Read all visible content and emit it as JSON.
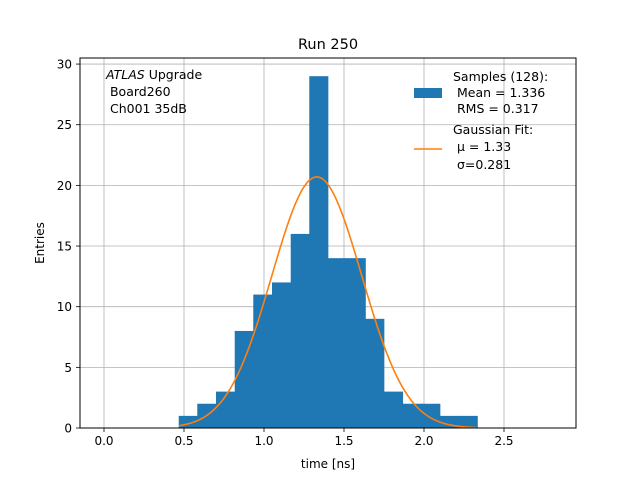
{
  "chart_data": {
    "type": "bar",
    "title": "Run 250",
    "xlabel": "time [ns]",
    "ylabel": "Entries",
    "xlim": [
      -0.15,
      2.95
    ],
    "ylim": [
      0,
      30.5
    ],
    "xticks": [
      0.0,
      0.5,
      1.0,
      1.5,
      2.0,
      2.5
    ],
    "xtick_labels": [
      "0.0",
      "0.5",
      "1.0",
      "1.5",
      "2.0",
      "2.5"
    ],
    "yticks": [
      0,
      5,
      10,
      15,
      20,
      25,
      30
    ],
    "ytick_labels": [
      "0",
      "5",
      "10",
      "15",
      "20",
      "25",
      "30"
    ],
    "grid": true,
    "annotation": {
      "line1_italic": "ATLAS",
      "line1_rest": " Upgrade",
      "line2": " Board260",
      "line3": " Ch001 35dB"
    },
    "legend": {
      "placement": "top-right",
      "entries": [
        {
          "lines": [
            "Samples (128):",
            " Mean = 1.336",
            " RMS = 0.317"
          ],
          "color": "#1f77b4",
          "kind": "patch"
        },
        {
          "lines": [
            "Gaussian Fit:",
            " μ = 1.33",
            " σ=0.281"
          ],
          "color": "#ff7f0e",
          "kind": "line"
        }
      ]
    },
    "histogram": {
      "color": "#1f77b4",
      "bin_width": 0.1167,
      "bin_left_edges": [
        0.467,
        0.583,
        0.7,
        0.817,
        0.933,
        1.05,
        1.167,
        1.283,
        1.4,
        1.517,
        1.633,
        1.75,
        1.867,
        1.983,
        2.1,
        2.217
      ],
      "values": [
        1,
        2,
        3,
        8,
        11,
        12,
        16,
        29,
        14,
        14,
        9,
        3,
        2,
        2,
        1,
        1
      ]
    },
    "fit": {
      "color": "#ff7f0e",
      "mu": 1.33,
      "sigma": 0.281,
      "amplitude": 20.7,
      "x_range": [
        0.47,
        2.33
      ]
    }
  }
}
